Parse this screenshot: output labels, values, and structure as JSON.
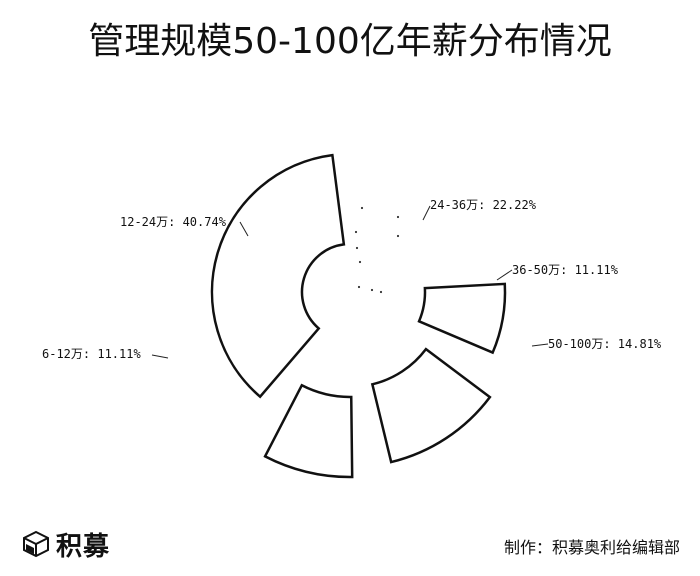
{
  "title": "管理规模50-100亿年薪分布情况",
  "chart_data": {
    "type": "pie",
    "style": "exploded rose-like sectors with outlines",
    "categories": [
      "6-12万",
      "12-24万",
      "24-36万",
      "36-50万",
      "50-100万"
    ],
    "values": [
      11.11,
      40.74,
      22.22,
      11.11,
      14.81
    ],
    "labels": [
      "6-12万: 11.11%",
      "12-24万: 40.74%",
      "24-36万: 22.22%",
      "36-50万: 11.11%",
      "50-100万: 14.81%"
    ],
    "legend": "none",
    "grid": false
  },
  "footer": {
    "logo_text": "积募",
    "credit": "制作：积募奥利给编辑部"
  },
  "colors": {
    "stroke": "#111111",
    "fill": "#ffffff"
  },
  "icons": {
    "logo": "cube-logo-icon"
  }
}
